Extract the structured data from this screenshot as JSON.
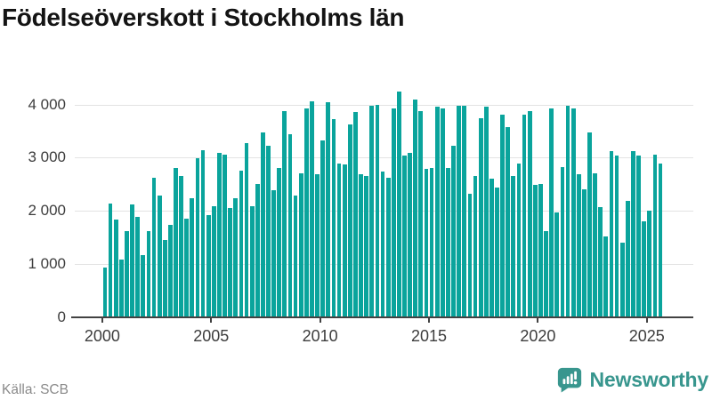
{
  "title": "Födelseöverskott i Stockholms län",
  "source": "Källa: SCB",
  "brand": {
    "name": "Newsworthy",
    "icon": "newsworthy-speech-bubble-chart-icon",
    "color": "#38968e"
  },
  "colors": {
    "bar": "#0aa49c",
    "grid": "#e3e3e3",
    "axis": "#424242",
    "tick_label": "#3d3d3d",
    "title": "#141414",
    "source": "#8a8a8a"
  },
  "chart_data": {
    "type": "bar",
    "title": "Födelseöverskott i Stockholms län",
    "xlabel": "",
    "ylabel": "",
    "grid": "horizontal",
    "legend": "none",
    "frequency": "quarterly",
    "ylim": [
      0,
      4400
    ],
    "yticks": {
      "values": [
        0,
        1000,
        2000,
        3000,
        4000
      ],
      "labels": [
        "0",
        "1 000",
        "2 000",
        "3 000",
        "4 000"
      ]
    },
    "xticks": {
      "years": [
        2000,
        2005,
        2010,
        2015,
        2020,
        2025
      ],
      "labels": [
        "2000",
        "2005",
        "2010",
        "2015",
        "2020",
        "2025"
      ]
    },
    "categories": [
      "2000Q1",
      "2000Q2",
      "2000Q3",
      "2000Q4",
      "2001Q1",
      "2001Q2",
      "2001Q3",
      "2001Q4",
      "2002Q1",
      "2002Q2",
      "2002Q3",
      "2002Q4",
      "2003Q1",
      "2003Q2",
      "2003Q3",
      "2003Q4",
      "2004Q1",
      "2004Q2",
      "2004Q3",
      "2004Q4",
      "2005Q1",
      "2005Q2",
      "2005Q3",
      "2005Q4",
      "2006Q1",
      "2006Q2",
      "2006Q3",
      "2006Q4",
      "2007Q1",
      "2007Q2",
      "2007Q3",
      "2007Q4",
      "2008Q1",
      "2008Q2",
      "2008Q3",
      "2008Q4",
      "2009Q1",
      "2009Q2",
      "2009Q3",
      "2009Q4",
      "2010Q1",
      "2010Q2",
      "2010Q3",
      "2010Q4",
      "2011Q1",
      "2011Q2",
      "2011Q3",
      "2011Q4",
      "2012Q1",
      "2012Q2",
      "2012Q3",
      "2012Q4",
      "2013Q1",
      "2013Q2",
      "2013Q3",
      "2013Q4",
      "2014Q1",
      "2014Q2",
      "2014Q3",
      "2014Q4",
      "2015Q1",
      "2015Q2",
      "2015Q3",
      "2015Q4",
      "2016Q1",
      "2016Q2",
      "2016Q3",
      "2016Q4",
      "2017Q1",
      "2017Q2",
      "2017Q3",
      "2017Q4",
      "2018Q1",
      "2018Q2",
      "2018Q3",
      "2018Q4",
      "2019Q1",
      "2019Q2",
      "2019Q3",
      "2019Q4",
      "2020Q1",
      "2020Q2",
      "2020Q3",
      "2020Q4",
      "2021Q1",
      "2021Q2",
      "2021Q3",
      "2021Q4",
      "2022Q1",
      "2022Q2",
      "2022Q3",
      "2022Q4",
      "2023Q1",
      "2023Q2",
      "2023Q3",
      "2023Q4",
      "2024Q1",
      "2024Q2",
      "2024Q3",
      "2024Q4",
      "2025Q1",
      "2025Q2",
      "2025Q3"
    ],
    "values": [
      930,
      2140,
      1830,
      1080,
      1620,
      2120,
      1880,
      1160,
      1610,
      2620,
      2280,
      1450,
      1740,
      2810,
      2660,
      1850,
      2240,
      2980,
      3140,
      1910,
      2090,
      3090,
      3060,
      2050,
      2230,
      2760,
      3280,
      2090,
      2510,
      3480,
      3220,
      2390,
      2800,
      3880,
      3440,
      2290,
      2710,
      3930,
      4060,
      2690,
      3320,
      4040,
      3730,
      2890,
      2870,
      3620,
      3860,
      2680,
      2660,
      3980,
      4000,
      2740,
      2620,
      3920,
      4250,
      3040,
      3080,
      4100,
      3880,
      2790,
      2810,
      3960,
      3920,
      2800,
      3220,
      3980,
      3980,
      2320,
      2650,
      3740,
      3960,
      2610,
      2440,
      3810,
      3580,
      2660,
      2880,
      3810,
      3870,
      2480,
      2510,
      1610,
      3920,
      1970,
      2820,
      3970,
      3930,
      2690,
      2410,
      3480,
      2700,
      2060,
      1520,
      3120,
      3040,
      1390,
      2190,
      3120,
      3030,
      1800,
      2000,
      3060,
      2880
    ]
  }
}
